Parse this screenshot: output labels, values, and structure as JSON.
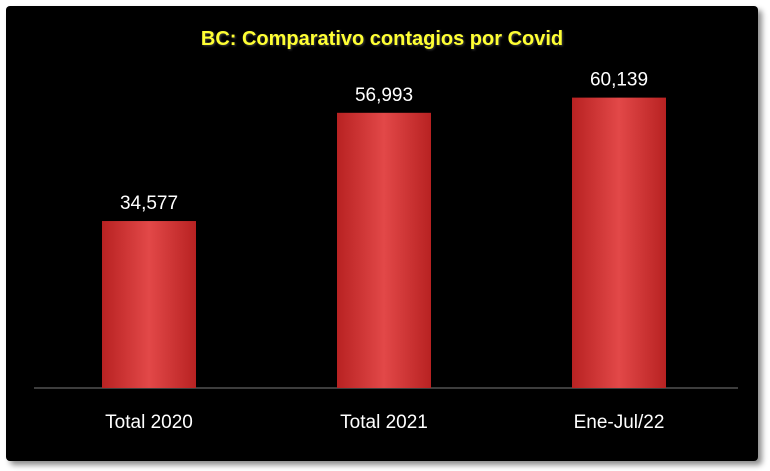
{
  "chart_data": {
    "type": "bar",
    "title": "BC: Comparativo contagios por Covid",
    "categories": [
      "Total 2020",
      "Total 2021",
      "Ene-Jul/22"
    ],
    "values": [
      34577,
      56993,
      60139
    ],
    "value_labels": [
      "34,577",
      "56,993",
      "60,139"
    ],
    "xlabel": "",
    "ylabel": "",
    "ylim": [
      0,
      70000
    ],
    "grid": false,
    "legend": "none",
    "colors": {
      "background": "#000000",
      "bar": "#d63a3a",
      "title": "#ffff33",
      "text": "#ffffff"
    }
  }
}
